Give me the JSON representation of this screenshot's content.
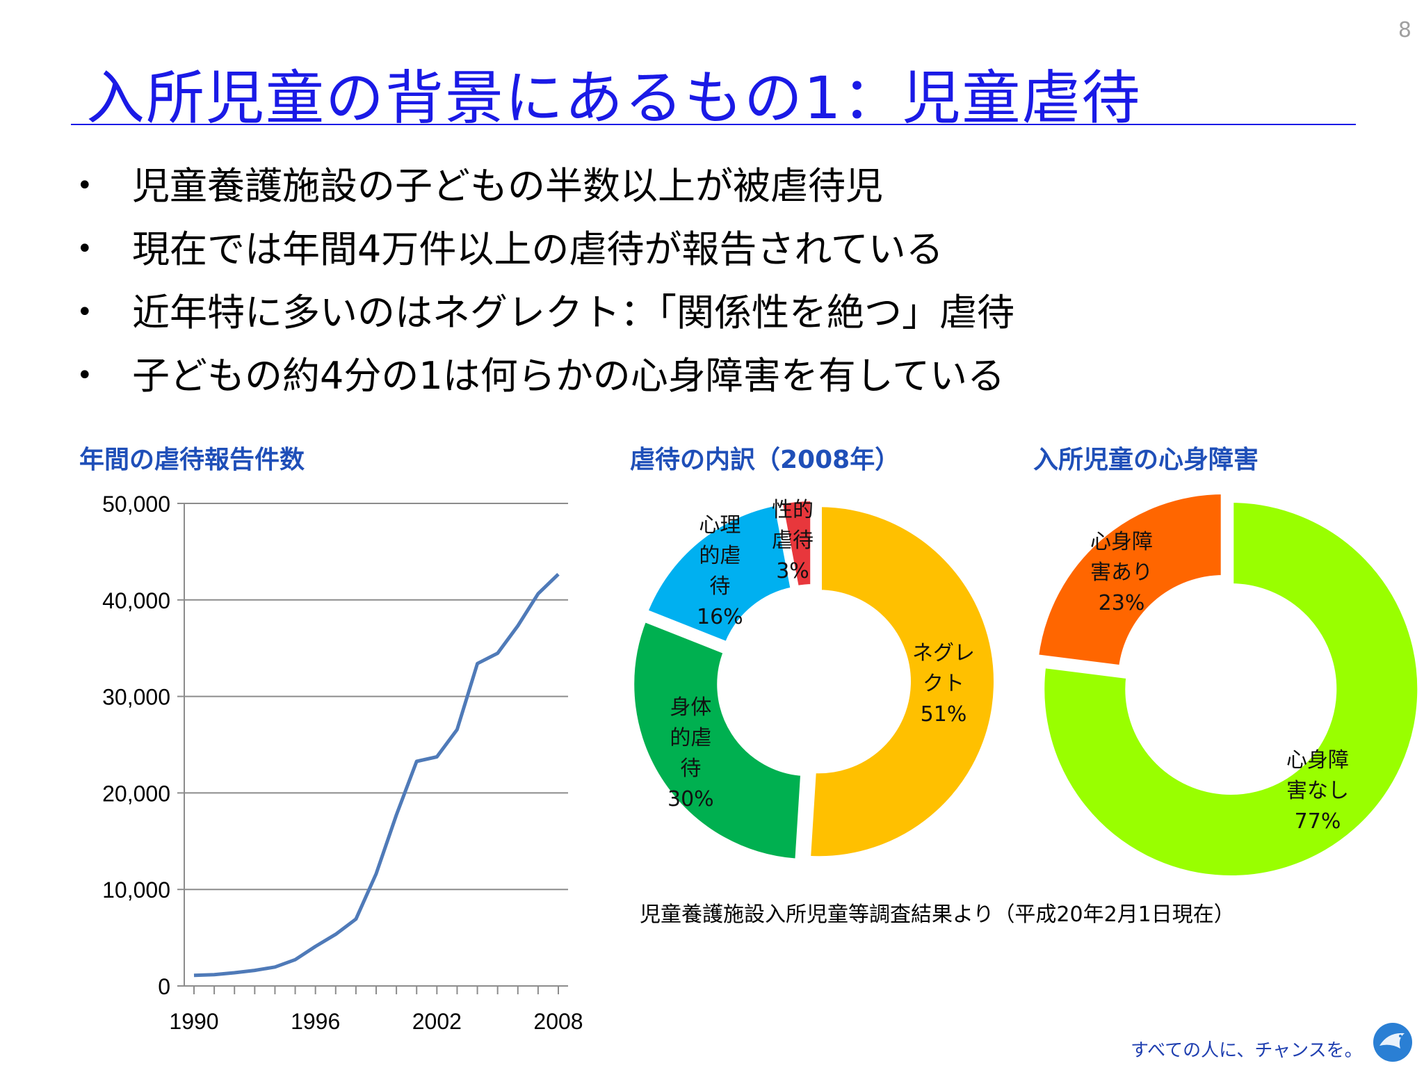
{
  "page_number": "8",
  "title": "入所児童の背景にあるもの1：児童虐待",
  "bullets": [
    "児童養護施設の子どもの半数以上が被虐待児",
    "現在では年間4万件以上の虐待が報告されている",
    "近年特に多いのはネグレクト：「関係性を絶つ」虐待",
    "子どもの約4分の1は何らかの心身障害を有している"
  ],
  "bullet_symbol": "•",
  "source_note": "児童養護施設入所児童等調査結果より（平成20年2月1日現在）",
  "tagline": "すべての人に、チャンスを。",
  "logo_icon": "bird-logo-icon",
  "colors": {
    "title": "#1a1ae6",
    "chart_title": "#1f4fb8",
    "line": "#4f7ab8",
    "grid": "#8c8c8c",
    "neglect": "#ffc000",
    "physical": "#00b050",
    "psychological": "#00b0f0",
    "sexual": "#e8373c",
    "disability_yes": "#ff6600",
    "disability_no": "#99ff00"
  },
  "chart_data": [
    {
      "type": "line",
      "title": "年間の虐待報告件数",
      "x": [
        1990,
        1991,
        1992,
        1993,
        1994,
        1995,
        1996,
        1997,
        1998,
        1999,
        2000,
        2001,
        2002,
        2003,
        2004,
        2005,
        2006,
        2007,
        2008
      ],
      "y": [
        1101,
        1171,
        1372,
        1611,
        1961,
        2722,
        4102,
        5352,
        6932,
        11631,
        17725,
        23274,
        23738,
        26569,
        33408,
        34472,
        37323,
        40639,
        42664
      ],
      "ylim": [
        0,
        50000
      ],
      "y_ticks": [
        "0",
        "10,000",
        "20,000",
        "30,000",
        "40,000",
        "50,000"
      ],
      "x_tick_labels": [
        "1990",
        "1996",
        "2002",
        "2008"
      ],
      "grid": true
    },
    {
      "type": "pie",
      "title": "虐待の内訳（2008年）",
      "labels": [
        "ネグレクト",
        "身体的虐待",
        "心理的虐待",
        "性的虐待"
      ],
      "label_lines": [
        [
          "ネグレ",
          "クト"
        ],
        [
          "身体",
          "的虐",
          "待"
        ],
        [
          "心理",
          "的虐",
          "待"
        ],
        [
          "性的",
          "虐待"
        ]
      ],
      "values": [
        51,
        30,
        16,
        3
      ],
      "percent_labels": [
        "51%",
        "30%",
        "16%",
        "3%"
      ],
      "donut": true
    },
    {
      "type": "pie",
      "title": "入所児童の心身障害",
      "labels": [
        "心身障害なし",
        "心身障害あり"
      ],
      "label_lines": [
        [
          "心身障",
          "害なし"
        ],
        [
          "心身障",
          "害あり"
        ]
      ],
      "values": [
        77,
        23
      ],
      "percent_labels": [
        "77%",
        "23%"
      ],
      "donut": true
    }
  ]
}
